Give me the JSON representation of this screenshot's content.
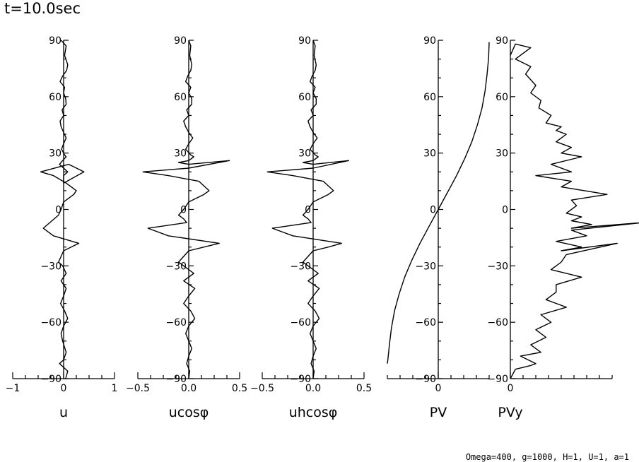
{
  "page": {
    "title": "t=10.0sec",
    "footer": "Omega=400, g=1000, H=1, U=1, a=1"
  },
  "chart_data": [
    {
      "type": "line",
      "xlabel": "u",
      "xlim": [
        -1,
        1
      ],
      "xticks": [
        -1,
        0,
        1
      ],
      "xtick_labels": [
        "−1",
        "0",
        "1"
      ],
      "ylim": [
        -90,
        90
      ],
      "yticks": [
        -90,
        -60,
        -30,
        0,
        30,
        60,
        90
      ],
      "ytick_labels": [
        "−90",
        "−60",
        "−30",
        "0",
        "30",
        "60",
        "90"
      ],
      "series": [
        {
          "x": [
            -0.05,
            0.05,
            0.02,
            0.08,
            0.06,
            -0.02,
            -0.07,
            0.02,
            0.0,
            0.04,
            0.05,
            -0.03,
            0.0,
            -0.07,
            -0.05,
            0.0,
            0.05,
            0.0,
            -0.04,
            0.02,
            0.05,
            -0.02,
            -0.08,
            0.0,
            0.08,
            0.0,
            0.0,
            0.0,
            0.4,
            0.1,
            -0.45,
            -0.2,
            0.05,
            0.25,
            0.2,
            0.0,
            -0.05,
            -0.1,
            -0.4,
            -0.2,
            0.3,
            0.0,
            -0.05,
            -0.1,
            -0.02,
            0.05,
            -0.05,
            0.05,
            0.0,
            -0.06,
            0.02,
            0.08,
            0.0,
            -0.05,
            -0.02,
            0.05,
            0.0,
            -0.08,
            0.08,
            0.04
          ],
          "y": [
            90,
            87,
            82,
            77,
            74,
            71,
            68,
            65,
            62,
            59,
            56,
            53,
            50,
            47,
            44,
            41,
            38,
            35,
            32,
            29,
            28,
            26,
            24,
            22,
            20,
            18,
            16,
            14,
            20,
            24,
            20,
            18,
            14,
            10,
            8,
            4,
            0,
            -3,
            -10,
            -14,
            -18,
            -22,
            -25,
            -28,
            -30,
            -34,
            -38,
            -42,
            -46,
            -50,
            -54,
            -58,
            -62,
            -66,
            -70,
            -76,
            -80,
            -82,
            -86,
            -90
          ]
        }
      ]
    },
    {
      "type": "line",
      "xlabel": "ucosφ",
      "xlim": [
        -0.5,
        0.5
      ],
      "xticks": [
        -0.5,
        0,
        0.5
      ],
      "xtick_labels": [
        "−0.5",
        "0.0",
        "0.5"
      ],
      "ylim": [
        -90,
        90
      ],
      "yticks": [
        -90,
        -60,
        -30,
        0,
        30,
        60,
        90
      ],
      "ytick_labels": [
        "−90",
        "−60",
        "−30",
        "0",
        "30",
        "60",
        "90"
      ],
      "series": [
        {
          "x": [
            0.0,
            0.02,
            0.01,
            0.03,
            0.02,
            -0.01,
            -0.03,
            0.02,
            0.0,
            0.03,
            0.03,
            -0.02,
            0.0,
            -0.05,
            -0.03,
            0.0,
            0.04,
            0.0,
            -0.03,
            0.02,
            0.05,
            0.0,
            -0.1,
            0.0,
            0.4,
            0.0,
            -0.45,
            -0.2,
            0.1,
            0.2,
            0.15,
            0.0,
            -0.05,
            -0.1,
            -0.05,
            -0.02,
            -0.4,
            -0.2,
            0.3,
            0.15,
            0.0,
            -0.05,
            -0.1,
            -0.05,
            0.05,
            -0.05,
            0.06,
            0.0,
            -0.05,
            0.02,
            0.06,
            0.0,
            -0.03,
            0.0,
            0.03,
            0.0,
            -0.02,
            0.01,
            0.0
          ],
          "y": [
            90,
            87,
            82,
            77,
            74,
            71,
            68,
            65,
            62,
            59,
            56,
            53,
            50,
            47,
            44,
            41,
            38,
            35,
            32,
            29,
            28,
            26,
            25,
            24,
            26,
            22,
            20,
            18,
            15,
            10,
            8,
            4,
            0,
            -3,
            -5,
            -7,
            -10,
            -14,
            -18,
            -20,
            -22,
            -25,
            -28,
            -30,
            -34,
            -38,
            -42,
            -46,
            -50,
            -54,
            -58,
            -62,
            -66,
            -70,
            -74,
            -78,
            -82,
            -86,
            -90
          ]
        }
      ]
    },
    {
      "type": "line",
      "xlabel": "uhcosφ",
      "xlim": [
        -0.5,
        0.5
      ],
      "xticks": [
        -0.5,
        0,
        0.5
      ],
      "xtick_labels": [
        "−0.5",
        "0.0",
        "0.5"
      ],
      "ylim": [
        -90,
        90
      ],
      "yticks": [
        -90,
        -60,
        -30,
        0,
        30,
        60,
        90
      ],
      "ytick_labels": [
        "−90",
        "−60",
        "−30",
        "0",
        "30",
        "60",
        "90"
      ],
      "series": [
        {
          "x": [
            0.0,
            0.02,
            0.01,
            0.03,
            0.02,
            -0.01,
            -0.03,
            0.02,
            0.0,
            0.03,
            0.03,
            -0.02,
            0.0,
            -0.05,
            -0.03,
            0.0,
            0.04,
            0.0,
            -0.03,
            0.02,
            0.05,
            0.0,
            -0.1,
            0.0,
            0.35,
            0.0,
            -0.45,
            -0.2,
            0.1,
            0.2,
            0.15,
            0.0,
            -0.05,
            -0.1,
            -0.05,
            -0.02,
            -0.4,
            -0.2,
            0.28,
            0.15,
            0.0,
            -0.05,
            -0.1,
            -0.05,
            0.05,
            -0.05,
            0.06,
            0.0,
            -0.05,
            0.02,
            0.06,
            0.0,
            -0.03,
            0.0,
            0.03,
            0.0,
            -0.02,
            0.01,
            0.0
          ],
          "y": [
            90,
            87,
            82,
            77,
            74,
            71,
            68,
            65,
            62,
            59,
            56,
            53,
            50,
            47,
            44,
            41,
            38,
            35,
            32,
            29,
            28,
            26,
            25,
            24,
            26,
            22,
            20,
            18,
            15,
            10,
            8,
            4,
            0,
            -3,
            -5,
            -7,
            -10,
            -14,
            -18,
            -20,
            -22,
            -25,
            -28,
            -30,
            -34,
            -38,
            -42,
            -46,
            -50,
            -54,
            -58,
            -62,
            -66,
            -70,
            -74,
            -78,
            -82,
            -86,
            -90
          ]
        }
      ]
    },
    {
      "type": "line",
      "xlabel": "PV",
      "xlim": [
        -1,
        1
      ],
      "xticks": [
        0
      ],
      "xtick_labels": [
        "0"
      ],
      "ylim": [
        -90,
        90
      ],
      "yticks": [
        -90,
        -60,
        -30,
        0,
        30,
        60,
        90
      ],
      "ytick_labels": [
        "−90",
        "−60",
        "−30",
        "0",
        "30",
        "60",
        "90"
      ],
      "series": [
        {
          "x": [
            -1.0,
            -0.99,
            -0.96,
            -0.92,
            -0.86,
            -0.77,
            -0.66,
            -0.52,
            -0.36,
            -0.18,
            0.0,
            0.18,
            0.36,
            0.52,
            0.66,
            0.77,
            0.86,
            0.92,
            0.96,
            0.99,
            1.0
          ],
          "y": [
            -82,
            -80,
            -72,
            -63,
            -54,
            -45,
            -36,
            -27,
            -18,
            -9,
            0,
            9,
            18,
            27,
            36,
            45,
            54,
            63,
            72,
            81,
            89
          ]
        }
      ]
    },
    {
      "type": "line",
      "xlabel": "PVy",
      "xlim": [
        0,
        1
      ],
      "xticks": [
        0
      ],
      "xtick_labels": [
        "0"
      ],
      "ylim": [
        -90,
        90
      ],
      "yticks": [
        -90,
        -60,
        -30,
        0,
        30,
        60,
        90
      ],
      "ytick_labels": [
        "−90",
        "−60",
        "−30",
        "0",
        "30",
        "60",
        "90"
      ],
      "series": [
        {
          "x": [
            0.0,
            0.05,
            0.2,
            0.05,
            0.2,
            0.15,
            0.25,
            0.2,
            0.3,
            0.28,
            0.4,
            0.35,
            0.5,
            0.45,
            0.55,
            0.45,
            0.6,
            0.5,
            0.7,
            0.4,
            0.6,
            0.25,
            0.6,
            0.5,
            0.95,
            0.6,
            0.65,
            0.55,
            0.7,
            0.6,
            0.8,
            0.6,
            1.3,
            0.6,
            0.75,
            0.45,
            0.7,
            0.5,
            1.05,
            0.55,
            0.5,
            0.4,
            0.7,
            0.45,
            0.45,
            0.35,
            0.55,
            0.3,
            0.4,
            0.25,
            0.35,
            0.2,
            0.3,
            0.1,
            0.25,
            0.2,
            0.05,
            0.0
          ],
          "y": [
            82,
            88,
            86,
            80,
            76,
            72,
            66,
            62,
            58,
            54,
            50,
            46,
            44,
            42,
            40,
            36,
            33,
            30,
            28,
            24,
            20,
            18,
            15,
            12,
            8,
            5,
            2,
            -2,
            -4,
            -6,
            -8,
            -10,
            -7,
            -11,
            -14,
            -17,
            -20,
            -22,
            -18,
            -24,
            -28,
            -32,
            -36,
            -40,
            -44,
            -48,
            -52,
            -56,
            -60,
            -64,
            -68,
            -72,
            -76,
            -78,
            -82,
            -83,
            -85,
            -90
          ]
        }
      ]
    }
  ]
}
